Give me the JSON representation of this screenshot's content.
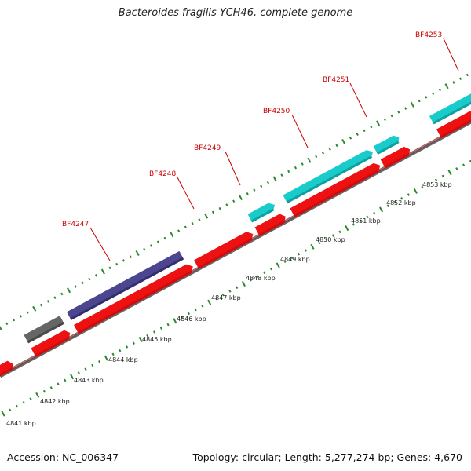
{
  "title": "Bacteroides fragilis YCH46, complete genome",
  "footer": {
    "accession": "Accession: NC_006347",
    "summary": "Topology: circular; Length: 5,277,274 bp; Genes: 4,670"
  },
  "colors": {
    "cds": "#ee1111",
    "gene_cyan": "#19cccc",
    "gene_purple": "#4c4590",
    "gene_gray": "#666666",
    "backbone": "#888888",
    "ticks": "#2a8a2a",
    "label": "#cc0000"
  },
  "gene_labels": [
    "BF4247",
    "BF4248",
    "BF4249",
    "BF4250",
    "BF4251",
    "BF4253"
  ],
  "kbp_ticks": [
    "4841 kbp",
    "4842 kbp",
    "4843 kbp",
    "4844 kbp",
    "4845 kbp",
    "4846 kbp",
    "4847 kbp",
    "4848 kbp",
    "4849 kbp",
    "4850 kbp",
    "4851 kbp",
    "4852 kbp",
    "4853 kbp"
  ]
}
